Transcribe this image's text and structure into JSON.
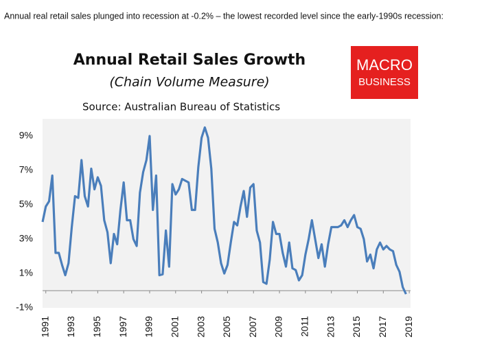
{
  "caption": "Annual real retail sales plunged into recession at -0.2% – the lowest recorded level since the early-1990s recession:",
  "logo": [
    "MACRO",
    "BUSINESS"
  ],
  "chart_data": {
    "type": "line",
    "title": "Annual Retail Sales Growth",
    "subtitle": "(Chain Volume Measure)",
    "source": "Source: Australian Bureau of Statistics",
    "x": [
      1990.75,
      1991,
      1991.25,
      1991.5,
      1991.75,
      1992,
      1992.25,
      1992.5,
      1992.75,
      1993,
      1993.25,
      1993.5,
      1993.75,
      1994,
      1994.25,
      1994.5,
      1994.75,
      1995,
      1995.25,
      1995.5,
      1995.75,
      1996,
      1996.25,
      1996.5,
      1996.75,
      1997,
      1997.25,
      1997.5,
      1997.75,
      1998,
      1998.25,
      1998.5,
      1998.75,
      1999,
      1999.25,
      1999.5,
      1999.75,
      2000,
      2000.25,
      2000.5,
      2000.75,
      2001,
      2001.25,
      2001.5,
      2001.75,
      2002,
      2002.25,
      2002.5,
      2002.75,
      2003,
      2003.25,
      2003.5,
      2003.75,
      2004,
      2004.25,
      2004.5,
      2004.75,
      2005,
      2005.25,
      2005.5,
      2005.75,
      2006,
      2006.25,
      2006.5,
      2006.75,
      2007,
      2007.25,
      2007.5,
      2007.75,
      2008,
      2008.25,
      2008.5,
      2008.75,
      2009,
      2009.25,
      2009.5,
      2009.75,
      2010,
      2010.25,
      2010.5,
      2010.75,
      2011,
      2011.25,
      2011.5,
      2011.75,
      2012,
      2012.25,
      2012.5,
      2012.75,
      2013,
      2013.25,
      2013.5,
      2013.75,
      2014,
      2014.25,
      2014.5,
      2014.75,
      2015,
      2015.25,
      2015.5,
      2015.75,
      2016,
      2016.25,
      2016.5,
      2016.75,
      2017,
      2017.25,
      2017.5,
      2017.75,
      2018,
      2018.25,
      2018.5,
      2018.75
    ],
    "series": [
      {
        "name": "Annual Retail Sales Growth",
        "color": "#4a7ebb",
        "values": [
          4.0,
          4.9,
          5.2,
          6.7,
          2.2,
          2.2,
          1.5,
          0.9,
          1.6,
          3.7,
          5.5,
          5.4,
          7.6,
          5.5,
          4.9,
          7.1,
          5.9,
          6.6,
          6.1,
          4.1,
          3.4,
          1.6,
          3.3,
          2.7,
          4.7,
          6.3,
          4.1,
          4.1,
          3.0,
          2.6,
          5.7,
          6.9,
          7.6,
          9.0,
          4.7,
          6.7,
          0.9,
          0.95,
          3.5,
          1.4,
          6.2,
          5.6,
          5.9,
          6.5,
          6.4,
          6.3,
          4.7,
          4.7,
          7.2,
          8.9,
          9.5,
          8.9,
          7.1,
          3.6,
          2.8,
          1.6,
          1.0,
          1.5,
          2.8,
          4.0,
          3.8,
          4.9,
          5.8,
          4.3,
          6.0,
          6.2,
          3.5,
          2.8,
          0.5,
          0.4,
          1.8,
          4.0,
          3.3,
          3.3,
          2.2,
          1.4,
          2.8,
          1.3,
          1.2,
          0.6,
          0.9,
          2.1,
          3.0,
          4.1,
          3.0,
          1.9,
          2.7,
          1.4,
          2.7,
          3.7,
          3.7,
          3.7,
          3.8,
          4.1,
          3.7,
          4.1,
          4.4,
          3.7,
          3.6,
          3.0,
          1.7,
          2.1,
          1.3,
          2.4,
          2.8,
          2.4,
          2.6,
          2.4,
          2.3,
          1.5,
          1.1,
          0.2,
          -0.2
        ]
      }
    ],
    "xlim": [
      1990.75,
      2019.1
    ],
    "xticks": [
      1991,
      1993,
      1995,
      1997,
      1999,
      2001,
      2003,
      2005,
      2007,
      2009,
      2011,
      2013,
      2015,
      2017,
      2019
    ],
    "ylim": [
      -1,
      10
    ],
    "yticks": [
      {
        "value": -1,
        "label": "-1%"
      },
      {
        "value": 1,
        "label": "1%"
      },
      {
        "value": 3,
        "label": "3%"
      },
      {
        "value": 5,
        "label": "5%"
      },
      {
        "value": 7,
        "label": "7%"
      },
      {
        "value": 9,
        "label": "9%"
      }
    ],
    "background": "#f2f2f2"
  }
}
